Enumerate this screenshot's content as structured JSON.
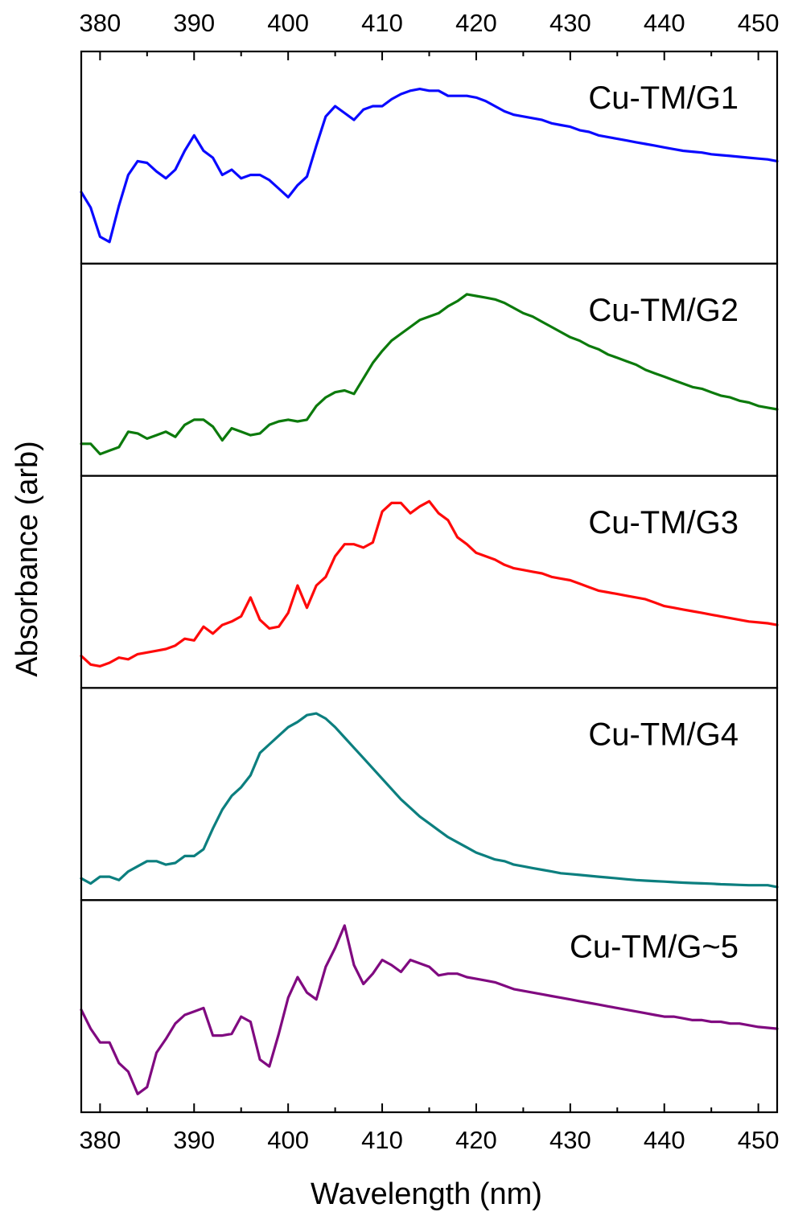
{
  "chart_data": {
    "type": "line",
    "layout": "stacked-panels",
    "xlabel": "Wavelength (nm)",
    "ylabel": "Absorbance (arb)",
    "xlim": [
      378,
      452
    ],
    "xticks": [
      380,
      390,
      400,
      410,
      420,
      430,
      440,
      450
    ],
    "tick_labels_top": true,
    "tick_labels_bottom": true,
    "y_ticks_shown": false,
    "grid": false,
    "legend": "none; each panel labelled at top-right",
    "series": [
      {
        "name": "Cu-TM/G1",
        "color": "#0a0aff",
        "x": [
          378,
          379,
          380,
          381,
          382,
          383,
          384,
          385,
          386,
          387,
          388,
          389,
          390,
          391,
          392,
          393,
          394,
          395,
          396,
          397,
          398,
          399,
          400,
          401,
          402,
          403,
          404,
          405,
          406,
          407,
          408,
          409,
          410,
          411,
          412,
          413,
          414,
          415,
          416,
          417,
          418,
          419,
          420,
          421,
          422,
          423,
          424,
          425,
          426,
          427,
          428,
          429,
          430,
          431,
          432,
          433,
          434,
          435,
          436,
          437,
          438,
          439,
          440,
          441,
          442,
          443,
          444,
          445,
          446,
          447,
          448,
          449,
          450,
          451,
          452
        ],
        "y": [
          0.33,
          0.24,
          0.07,
          0.04,
          0.25,
          0.43,
          0.51,
          0.5,
          0.45,
          0.41,
          0.46,
          0.57,
          0.66,
          0.57,
          0.53,
          0.43,
          0.46,
          0.41,
          0.43,
          0.43,
          0.4,
          0.35,
          0.3,
          0.37,
          0.42,
          0.6,
          0.77,
          0.83,
          0.79,
          0.75,
          0.81,
          0.83,
          0.83,
          0.87,
          0.9,
          0.92,
          0.93,
          0.92,
          0.92,
          0.89,
          0.89,
          0.89,
          0.88,
          0.86,
          0.83,
          0.8,
          0.78,
          0.77,
          0.76,
          0.75,
          0.73,
          0.72,
          0.71,
          0.69,
          0.68,
          0.66,
          0.65,
          0.64,
          0.63,
          0.62,
          0.61,
          0.6,
          0.59,
          0.58,
          0.57,
          0.565,
          0.56,
          0.55,
          0.545,
          0.54,
          0.535,
          0.53,
          0.525,
          0.52,
          0.51
        ]
      },
      {
        "name": "Cu-TM/G2",
        "color": "#0c7a0c",
        "x": [
          378,
          379,
          380,
          381,
          382,
          383,
          384,
          385,
          386,
          387,
          388,
          389,
          390,
          391,
          392,
          393,
          394,
          395,
          396,
          397,
          398,
          399,
          400,
          401,
          402,
          403,
          404,
          405,
          406,
          407,
          408,
          409,
          410,
          411,
          412,
          413,
          414,
          415,
          416,
          417,
          418,
          419,
          420,
          421,
          422,
          423,
          424,
          425,
          426,
          427,
          428,
          429,
          430,
          431,
          432,
          433,
          434,
          435,
          436,
          437,
          438,
          439,
          440,
          441,
          442,
          443,
          444,
          445,
          446,
          447,
          448,
          449,
          450,
          451,
          452
        ],
        "y": [
          0.1,
          0.1,
          0.04,
          0.06,
          0.08,
          0.17,
          0.16,
          0.13,
          0.15,
          0.17,
          0.14,
          0.21,
          0.24,
          0.24,
          0.2,
          0.12,
          0.19,
          0.17,
          0.15,
          0.16,
          0.21,
          0.23,
          0.24,
          0.23,
          0.24,
          0.32,
          0.37,
          0.4,
          0.41,
          0.39,
          0.48,
          0.57,
          0.64,
          0.7,
          0.74,
          0.78,
          0.82,
          0.84,
          0.86,
          0.9,
          0.93,
          0.97,
          0.96,
          0.95,
          0.94,
          0.92,
          0.89,
          0.86,
          0.84,
          0.81,
          0.78,
          0.75,
          0.72,
          0.7,
          0.67,
          0.65,
          0.62,
          0.6,
          0.58,
          0.56,
          0.53,
          0.51,
          0.49,
          0.47,
          0.45,
          0.43,
          0.42,
          0.4,
          0.38,
          0.37,
          0.35,
          0.34,
          0.32,
          0.31,
          0.3
        ]
      },
      {
        "name": "Cu-TM/G3",
        "color": "#ff0a0a",
        "x": [
          378,
          379,
          380,
          381,
          382,
          383,
          384,
          385,
          386,
          387,
          388,
          389,
          390,
          391,
          392,
          393,
          394,
          395,
          396,
          397,
          398,
          399,
          400,
          401,
          402,
          403,
          404,
          405,
          406,
          407,
          408,
          409,
          410,
          411,
          412,
          413,
          414,
          415,
          416,
          417,
          418,
          419,
          420,
          421,
          422,
          423,
          424,
          425,
          426,
          427,
          428,
          429,
          430,
          431,
          432,
          433,
          434,
          435,
          436,
          437,
          438,
          439,
          440,
          441,
          442,
          443,
          444,
          445,
          446,
          447,
          448,
          449,
          450,
          451,
          452
        ],
        "y": [
          0.1,
          0.05,
          0.04,
          0.06,
          0.09,
          0.08,
          0.11,
          0.12,
          0.13,
          0.14,
          0.16,
          0.2,
          0.19,
          0.27,
          0.23,
          0.28,
          0.3,
          0.33,
          0.44,
          0.31,
          0.26,
          0.27,
          0.35,
          0.51,
          0.38,
          0.51,
          0.56,
          0.68,
          0.75,
          0.75,
          0.73,
          0.76,
          0.94,
          0.99,
          0.99,
          0.93,
          0.97,
          1.0,
          0.93,
          0.89,
          0.79,
          0.75,
          0.7,
          0.68,
          0.66,
          0.63,
          0.61,
          0.6,
          0.59,
          0.58,
          0.56,
          0.55,
          0.54,
          0.52,
          0.5,
          0.48,
          0.47,
          0.46,
          0.45,
          0.44,
          0.43,
          0.41,
          0.39,
          0.38,
          0.37,
          0.36,
          0.35,
          0.34,
          0.33,
          0.32,
          0.31,
          0.3,
          0.295,
          0.29,
          0.28
        ]
      },
      {
        "name": "Cu-TM/G4",
        "color": "#0c7f7f",
        "x": [
          378,
          379,
          380,
          381,
          382,
          383,
          384,
          385,
          386,
          387,
          388,
          389,
          390,
          391,
          392,
          393,
          394,
          395,
          396,
          397,
          398,
          399,
          400,
          401,
          402,
          403,
          404,
          405,
          406,
          407,
          408,
          409,
          410,
          411,
          412,
          413,
          414,
          415,
          416,
          417,
          418,
          419,
          420,
          421,
          422,
          423,
          424,
          425,
          426,
          427,
          428,
          429,
          430,
          431,
          432,
          433,
          434,
          435,
          436,
          437,
          438,
          439,
          440,
          441,
          442,
          443,
          444,
          445,
          446,
          447,
          448,
          449,
          450,
          451,
          452
        ],
        "y": [
          0.04,
          0.01,
          0.05,
          0.05,
          0.03,
          0.08,
          0.11,
          0.14,
          0.14,
          0.12,
          0.13,
          0.17,
          0.17,
          0.21,
          0.33,
          0.44,
          0.52,
          0.57,
          0.64,
          0.77,
          0.82,
          0.87,
          0.92,
          0.95,
          0.99,
          1.0,
          0.97,
          0.92,
          0.86,
          0.8,
          0.74,
          0.68,
          0.62,
          0.56,
          0.5,
          0.45,
          0.4,
          0.36,
          0.32,
          0.28,
          0.25,
          0.22,
          0.19,
          0.17,
          0.15,
          0.14,
          0.12,
          0.11,
          0.1,
          0.09,
          0.08,
          0.07,
          0.065,
          0.06,
          0.055,
          0.05,
          0.045,
          0.04,
          0.035,
          0.03,
          0.027,
          0.024,
          0.021,
          0.018,
          0.015,
          0.013,
          0.011,
          0.009,
          0.006,
          0.004,
          0.002,
          0.0,
          0.0,
          0.0,
          -0.01
        ]
      },
      {
        "name": "Cu-TM/G~5",
        "color": "#800a80",
        "x": [
          378,
          379,
          380,
          381,
          382,
          383,
          384,
          385,
          386,
          387,
          388,
          389,
          390,
          391,
          392,
          393,
          394,
          395,
          396,
          397,
          398,
          399,
          400,
          401,
          402,
          403,
          404,
          405,
          406,
          407,
          408,
          409,
          410,
          411,
          412,
          413,
          414,
          415,
          416,
          417,
          418,
          419,
          420,
          421,
          422,
          423,
          424,
          425,
          426,
          427,
          428,
          429,
          430,
          431,
          432,
          433,
          434,
          435,
          436,
          437,
          438,
          439,
          440,
          441,
          442,
          443,
          444,
          445,
          446,
          447,
          448,
          449,
          450,
          451,
          452
        ],
        "y": [
          0.51,
          0.4,
          0.32,
          0.32,
          0.2,
          0.15,
          0.02,
          0.06,
          0.26,
          0.34,
          0.43,
          0.48,
          0.5,
          0.52,
          0.36,
          0.36,
          0.37,
          0.47,
          0.44,
          0.22,
          0.18,
          0.37,
          0.58,
          0.7,
          0.61,
          0.57,
          0.76,
          0.87,
          1.0,
          0.77,
          0.66,
          0.72,
          0.8,
          0.77,
          0.73,
          0.8,
          0.78,
          0.76,
          0.71,
          0.72,
          0.72,
          0.7,
          0.69,
          0.68,
          0.67,
          0.65,
          0.63,
          0.62,
          0.61,
          0.6,
          0.59,
          0.58,
          0.57,
          0.56,
          0.55,
          0.54,
          0.53,
          0.52,
          0.51,
          0.5,
          0.49,
          0.48,
          0.47,
          0.47,
          0.46,
          0.45,
          0.45,
          0.44,
          0.44,
          0.43,
          0.43,
          0.42,
          0.41,
          0.405,
          0.4
        ]
      }
    ]
  }
}
